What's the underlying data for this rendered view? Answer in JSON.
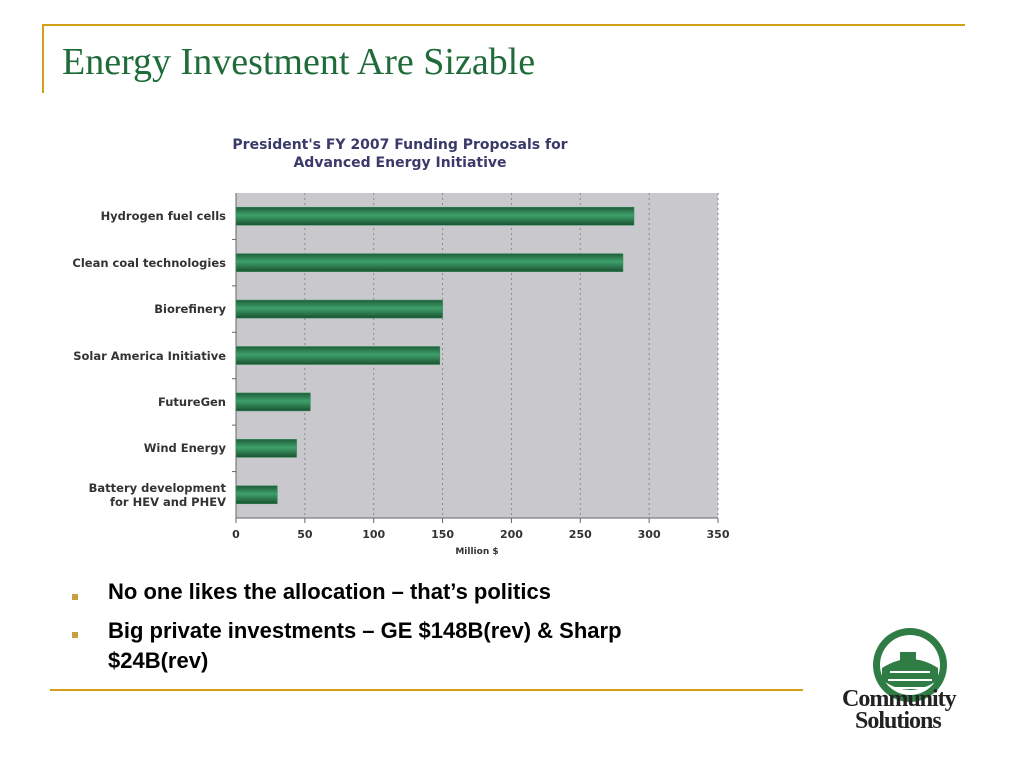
{
  "header": {
    "title": "Energy Investment Are Sizable"
  },
  "chart_data": {
    "type": "hbar",
    "title": "President's FY 2007 Funding Proposals for\nAdvanced Energy Initiative",
    "x_label": "Million $",
    "categories": [
      "Hydrogen fuel cells",
      "Clean coal technologies",
      "Biorefinery",
      "Solar America Initiative",
      "FutureGen",
      "Wind Energy",
      "Battery development\nfor HEV and PHEV"
    ],
    "values": [
      289,
      281,
      150,
      148,
      54,
      44,
      30
    ],
    "color": "#2e8b57",
    "xlim": [
      0,
      350
    ],
    "xticks": [
      0,
      50,
      100,
      150,
      200,
      250,
      300,
      350
    ],
    "grid": true
  },
  "bullets": [
    "No one likes the allocation – that’s politics",
    "Big private investments – GE $148B(rev) & Sharp $24B(rev)"
  ],
  "logo": {
    "line1": "Community",
    "line2": "Solutions"
  }
}
